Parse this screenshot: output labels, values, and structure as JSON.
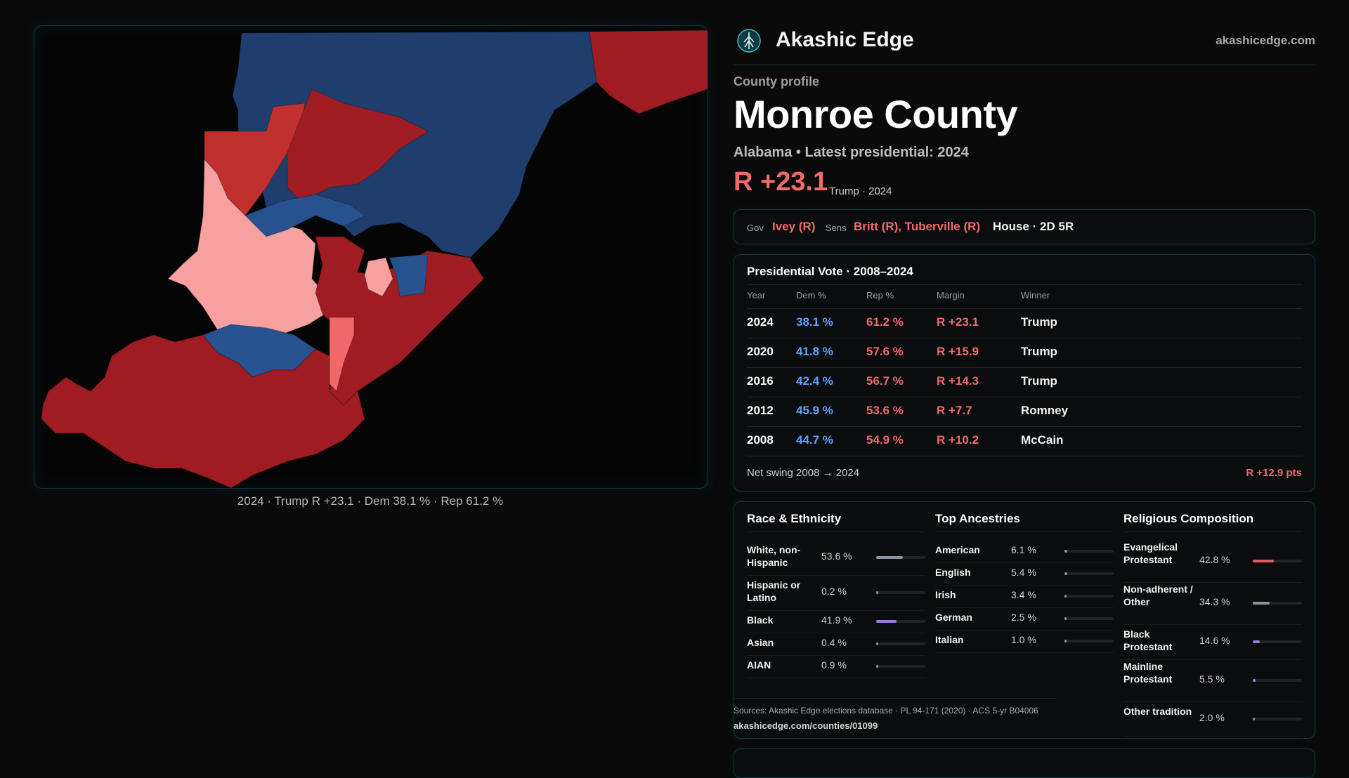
{
  "brand": {
    "name": "Akashic Edge",
    "url": "akashicedge.com",
    "logo_icon": "compass-tree-logo-icon"
  },
  "profile": {
    "kicker": "County profile",
    "county": "Monroe County",
    "subtitle": "Alabama • Latest presidential: 2024",
    "margin": "R +23.1",
    "margin_note": "Trump · 2024"
  },
  "officials": {
    "gov_label": "Gov",
    "gov_value": "Ivey (R)",
    "sens_label": "Sens",
    "sens_value": "Britt (R), Tuberville (R)",
    "house": "House · 2D 5R"
  },
  "presidential": {
    "title": "Presidential Vote · 2008–2024",
    "headers": [
      "Year",
      "Dem %",
      "Rep %",
      "Margin",
      "Winner"
    ],
    "rows": [
      {
        "year": "2024",
        "dem": "38.1 %",
        "rep": "61.2 %",
        "margin": "R +23.1",
        "winner": "Trump"
      },
      {
        "year": "2020",
        "dem": "41.8 %",
        "rep": "57.6 %",
        "margin": "R +15.9",
        "winner": "Trump"
      },
      {
        "year": "2016",
        "dem": "42.4 %",
        "rep": "56.7 %",
        "margin": "R +14.3",
        "winner": "Trump"
      },
      {
        "year": "2012",
        "dem": "45.9 %",
        "rep": "53.6 %",
        "margin": "R +7.7",
        "winner": "Romney"
      },
      {
        "year": "2008",
        "dem": "44.7 %",
        "rep": "54.9 %",
        "margin": "R +10.2",
        "winner": "McCain"
      }
    ],
    "swing_label": "Net swing 2008 → 2024",
    "swing_value": "R +12.9 pts"
  },
  "race": {
    "title": "Race & Ethnicity",
    "rows": [
      {
        "label": "White, non-Hispanic",
        "value": "53.6 %",
        "pct": 53.6,
        "color": "#8a93a3"
      },
      {
        "label": "Hispanic or Latino",
        "value": "0.2 %",
        "pct": 0.2,
        "color": "#8a93a3"
      },
      {
        "label": "Black",
        "value": "41.9 %",
        "pct": 41.9,
        "color": "#9b7be0"
      },
      {
        "label": "Asian",
        "value": "0.4 %",
        "pct": 0.4,
        "color": "#8a93a3"
      },
      {
        "label": "AIAN",
        "value": "0.9 %",
        "pct": 0.9,
        "color": "#8a93a3"
      }
    ]
  },
  "ancestry": {
    "title": "Top Ancestries",
    "rows": [
      {
        "label": "American",
        "value": "6.1 %",
        "pct": 6.1,
        "color": "#8a93a3"
      },
      {
        "label": "English",
        "value": "5.4 %",
        "pct": 5.4,
        "color": "#8a93a3"
      },
      {
        "label": "Irish",
        "value": "3.4 %",
        "pct": 3.4,
        "color": "#8a93a3"
      },
      {
        "label": "German",
        "value": "2.5 %",
        "pct": 2.5,
        "color": "#8a93a3"
      },
      {
        "label": "Italian",
        "value": "1.0 %",
        "pct": 1.0,
        "color": "#8a93a3"
      }
    ]
  },
  "religion": {
    "title": "Religious Composition",
    "rows": [
      {
        "label": "Evangelical Protestant",
        "value": "42.8 %",
        "pct": 42.8,
        "color": "#e05a5e"
      },
      {
        "label": "Non-adherent / Other",
        "value": "34.3 %",
        "pct": 34.3,
        "color": "#8a93a3"
      },
      {
        "label": "Black Protestant",
        "value": "14.6 %",
        "pct": 14.6,
        "color": "#9b7be0"
      },
      {
        "label": "Mainline Protestant",
        "value": "5.5 %",
        "pct": 5.5,
        "color": "#5fa3ff"
      },
      {
        "label": "Other tradition",
        "value": "2.0 %",
        "pct": 2.0,
        "color": "#8a93a3"
      }
    ]
  },
  "sources": {
    "text": "Sources: Akashic Edge elections database · PL 94-171 (2020) · ACS 5-yr B04006",
    "url": "akashicedge.com/counties/01099"
  },
  "map": {
    "caption": "2024 · Trump R +23.1 · Dem 38.1 % · Rep 61.2 %",
    "colors": {
      "dem_strong": "#1f3e6e",
      "dem_mid": "#28528f",
      "rep_strong": "#9e1c22",
      "rep_mid": "#c0302f",
      "rep_light": "#f0686a",
      "rep_pale": "#f7a0a0"
    }
  }
}
